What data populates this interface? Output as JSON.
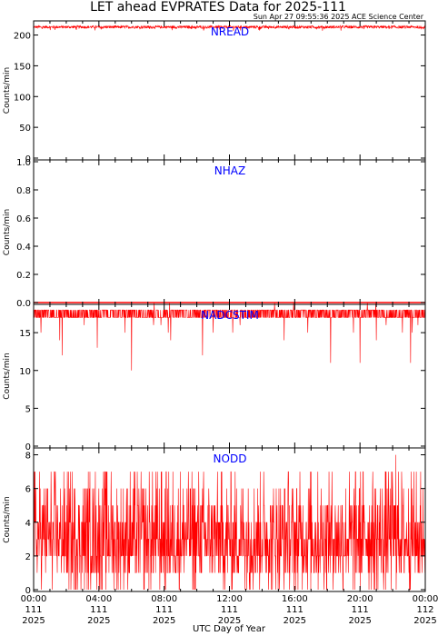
{
  "title": "LET ahead EVPRATES Data for 2025-111",
  "timestamp": "Sun Apr 27 09:55:36 2025 ACE Science Center",
  "xlabel": "UTC Day of Year",
  "colors": {
    "series": "#ff0000",
    "panel_title": "#0000ff",
    "axes": "#000000"
  },
  "x_ticks": [
    {
      "time": "00:00",
      "day": "111",
      "year": "2025"
    },
    {
      "time": "04:00",
      "day": "111",
      "year": "2025"
    },
    {
      "time": "08:00",
      "day": "111",
      "year": "2025"
    },
    {
      "time": "12:00",
      "day": "111",
      "year": "2025"
    },
    {
      "time": "16:00",
      "day": "111",
      "year": "2025"
    },
    {
      "time": "20:00",
      "day": "111",
      "year": "2025"
    },
    {
      "time": "00:00",
      "day": "112",
      "year": "2025"
    }
  ],
  "chart_data": [
    {
      "type": "line",
      "title": "NREAD",
      "ylabel": "Counts/min",
      "ylim": [
        0,
        220
      ],
      "yticks": [
        0,
        50,
        100,
        150,
        200
      ],
      "ytick_labels": [
        "0",
        "50",
        "100",
        "150",
        "200"
      ],
      "xlim_hours": [
        0,
        24
      ],
      "summary": {
        "typical": 213,
        "min": 207,
        "max": 219
      }
    },
    {
      "type": "line",
      "title": "NHAZ",
      "ylabel": "Counts/min",
      "ylim": [
        0,
        1
      ],
      "yticks": [
        0,
        0.2,
        0.4,
        0.6,
        0.8,
        1.0
      ],
      "ytick_labels": [
        "0.0",
        "0.2",
        "0.4",
        "0.6",
        "0.8",
        "1.0"
      ],
      "xlim_hours": [
        0,
        24
      ],
      "summary": {
        "typical": 0,
        "min": 0,
        "max": 0
      }
    },
    {
      "type": "line",
      "title": "NADCSTIM",
      "ylabel": "Counts/min",
      "ylim": [
        0,
        18.5
      ],
      "yticks": [
        0,
        5,
        10,
        15
      ],
      "ytick_labels": [
        "0",
        "5",
        "10",
        "15"
      ],
      "xlim_hours": [
        0,
        24
      ],
      "summary": {
        "typical": 18,
        "min": 10,
        "max": 19
      },
      "dips": [
        {
          "hour": 0.45,
          "value": 15
        },
        {
          "hour": 1.6,
          "value": 14
        },
        {
          "hour": 1.75,
          "value": 12
        },
        {
          "hour": 3.1,
          "value": 16
        },
        {
          "hour": 3.9,
          "value": 13
        },
        {
          "hour": 5.6,
          "value": 15
        },
        {
          "hour": 6.0,
          "value": 10
        },
        {
          "hour": 7.35,
          "value": 16
        },
        {
          "hour": 7.8,
          "value": 16
        },
        {
          "hour": 8.25,
          "value": 15
        },
        {
          "hour": 8.4,
          "value": 14
        },
        {
          "hour": 10.35,
          "value": 12
        },
        {
          "hour": 11.0,
          "value": 15
        },
        {
          "hour": 12.2,
          "value": 15
        },
        {
          "hour": 12.65,
          "value": 16
        },
        {
          "hour": 15.35,
          "value": 14
        },
        {
          "hour": 16.8,
          "value": 15
        },
        {
          "hour": 18.2,
          "value": 11
        },
        {
          "hour": 19.6,
          "value": 15
        },
        {
          "hour": 20.0,
          "value": 11
        },
        {
          "hour": 21.0,
          "value": 14
        },
        {
          "hour": 21.6,
          "value": 16
        },
        {
          "hour": 22.6,
          "value": 15
        },
        {
          "hour": 23.1,
          "value": 11
        },
        {
          "hour": 23.2,
          "value": 15
        },
        {
          "hour": 23.55,
          "value": 16
        }
      ]
    },
    {
      "type": "line",
      "title": "NODD",
      "ylabel": "Counts/min",
      "ylim": [
        0,
        8.3
      ],
      "yticks": [
        0,
        2,
        4,
        6,
        8
      ],
      "ytick_labels": [
        "0",
        "2",
        "4",
        "6",
        "8"
      ],
      "xlim_hours": [
        0,
        24
      ],
      "summary": {
        "typical": 2,
        "min": 0,
        "max": 8
      },
      "peak": {
        "hour": 22.2,
        "value": 8
      }
    }
  ]
}
